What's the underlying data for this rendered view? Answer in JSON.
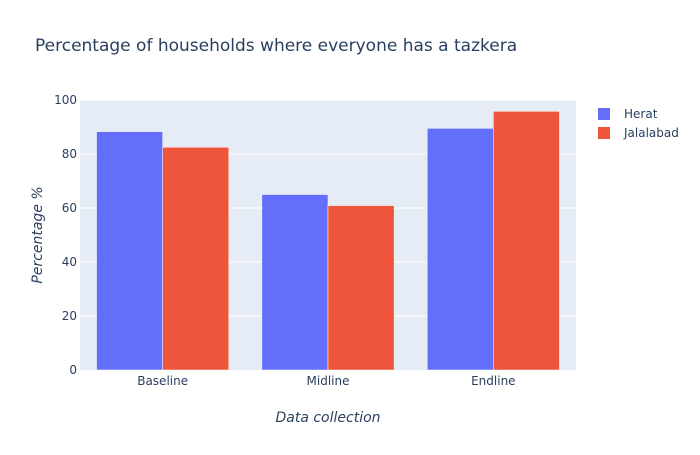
{
  "colors": {
    "plot_background": "#e5ecf6",
    "gridline": "#ffffff",
    "text": "#2a3f5f",
    "series": [
      "#636efa",
      "#ef553b"
    ]
  },
  "chart_data": {
    "type": "bar",
    "title": "Percentage of households where everyone has a tazkera",
    "xlabel": "Data collection",
    "ylabel": "Percentage %",
    "categories": [
      "Baseline",
      "Midline",
      "Endline"
    ],
    "series": [
      {
        "name": "Herat",
        "values": [
          88.3,
          65.0,
          89.5
        ]
      },
      {
        "name": "Jalalabad",
        "values": [
          82.5,
          60.9,
          95.8
        ]
      }
    ],
    "ylim": [
      0,
      100
    ],
    "yticks": [
      0,
      20,
      40,
      60,
      80,
      100
    ],
    "grid": true,
    "legend": "top-right",
    "barmode": "group"
  }
}
